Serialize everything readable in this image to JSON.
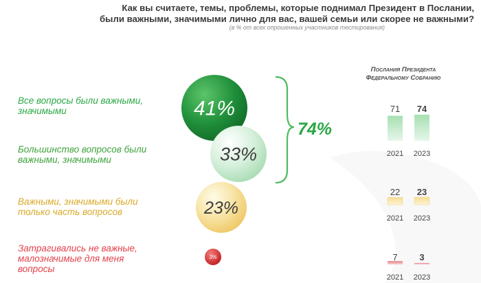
{
  "title_line1": "Как вы считаете, темы, проблемы, которые поднимал Президент в Послании,",
  "title_line2": "были важными, значимыми лично для вас, вашей семьи или скорее не важными?",
  "subtitle": "(в % от всех опрошенных участников тестирования)",
  "colors": {
    "green_dark": "#1f8f3a",
    "green_light": "#c9ebd2",
    "yellow": "#f5dc8f",
    "red": "#d62f2f",
    "text_green": "#2aa845",
    "text_yellow": "#d9a928",
    "text_red": "#e3414a"
  },
  "chart_data": [
    {
      "type": "bubble",
      "categories": [
        "Все вопросы были важными, значимыми",
        "Большинство вопросов были важными, значимыми",
        "Важными, значимыми были только часть вопросов",
        "Затрагивались не важные, малозначимые для меня вопросы"
      ],
      "values": [
        41,
        33,
        23,
        3
      ],
      "value_labels": [
        "41%",
        "33%",
        "23%",
        "3%"
      ],
      "total_label": "74%",
      "total_value": 74
    },
    {
      "type": "bar",
      "title": "Послания Президента Федеральному Собранию",
      "years": [
        "2021",
        "2023"
      ],
      "groups": [
        {
          "values": [
            71,
            74
          ],
          "labels": [
            "71",
            "74"
          ]
        },
        {
          "values": [
            22,
            23
          ],
          "labels": [
            "22",
            "23"
          ]
        },
        {
          "values": [
            7,
            3
          ],
          "labels": [
            "7",
            "3"
          ]
        }
      ]
    }
  ]
}
